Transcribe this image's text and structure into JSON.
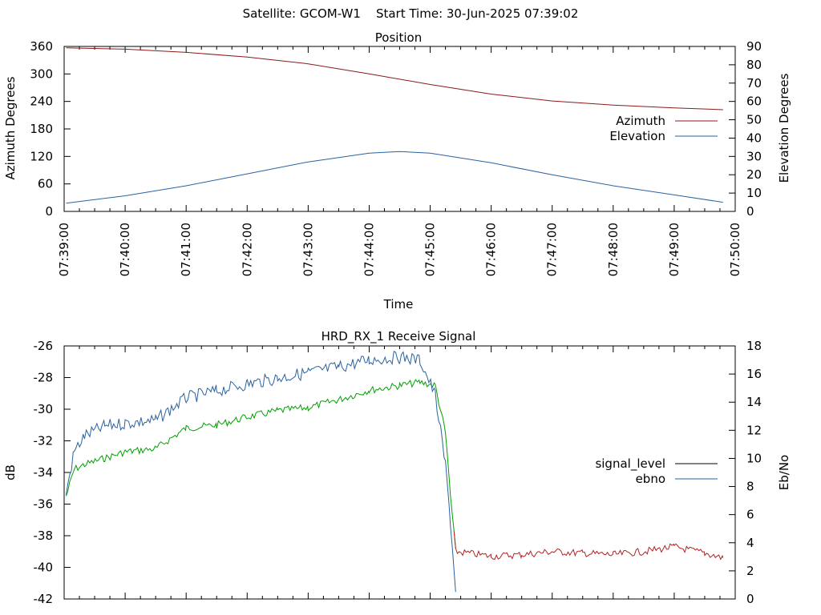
{
  "header": {
    "title": "Satellite: GCOM-W1    Start Time: 30-Jun-2025 07:39:02"
  },
  "colors": {
    "azimuth": "#8b1a1a",
    "elevation": "#2a62a0",
    "signal_level": "#00a000",
    "signal_low": "#b22222",
    "ebno": "#2a62a0",
    "axis": "#000000"
  },
  "chart_data": [
    {
      "type": "line",
      "title": "Position",
      "xlabel": "Time",
      "ylabel": "Azimuth Degrees",
      "y2label": "Elevation Degrees",
      "x_ticks": [
        "07:39:00",
        "07:40:00",
        "07:41:00",
        "07:42:00",
        "07:43:00",
        "07:44:00",
        "07:45:00",
        "07:46:00",
        "07:47:00",
        "07:48:00",
        "07:49:00",
        "07:50:00"
      ],
      "yticks": [
        0,
        60,
        120,
        180,
        240,
        300,
        360
      ],
      "y2ticks": [
        0,
        10,
        20,
        30,
        40,
        50,
        60,
        70,
        80,
        90
      ],
      "ylim": [
        0,
        360
      ],
      "y2lim": [
        0,
        90
      ],
      "legend_position": "right",
      "series": [
        {
          "name": "Azimuth",
          "axis": "y1",
          "x": [
            "07:39:02",
            "07:40:00",
            "07:41:00",
            "07:42:00",
            "07:43:00",
            "07:44:00",
            "07:45:00",
            "07:46:00",
            "07:47:00",
            "07:48:00",
            "07:49:00",
            "07:49:48"
          ],
          "values": [
            357,
            354,
            347,
            337,
            322,
            300,
            277,
            256,
            241,
            232,
            226,
            222
          ]
        },
        {
          "name": "Elevation",
          "axis": "y2",
          "x": [
            "07:39:02",
            "07:40:00",
            "07:41:00",
            "07:42:00",
            "07:43:00",
            "07:44:00",
            "07:44:30",
            "07:45:00",
            "07:46:00",
            "07:47:00",
            "07:48:00",
            "07:49:00",
            "07:49:48"
          ],
          "values": [
            4.5,
            8.5,
            14,
            20.5,
            27,
            31.8,
            32.7,
            31.8,
            26.5,
            20,
            14,
            9,
            5
          ]
        }
      ]
    },
    {
      "type": "line",
      "title": "HRD_RX_1 Receive Signal",
      "ylabel": "dB",
      "y2label": "Eb/No",
      "yticks": [
        -26,
        -28,
        -30,
        -32,
        -34,
        -36,
        -38,
        -40,
        -42
      ],
      "y2ticks": [
        18,
        16,
        14,
        12,
        10,
        8,
        6,
        4,
        2,
        0
      ],
      "ylim": [
        -42,
        -26
      ],
      "y2lim": [
        0,
        18
      ],
      "legend_position": "right",
      "series": [
        {
          "name": "signal_level",
          "axis": "y1",
          "x": [
            "07:39:02",
            "07:39:10",
            "07:39:20",
            "07:39:40",
            "07:40:00",
            "07:40:30",
            "07:41:00",
            "07:41:30",
            "07:42:00",
            "07:42:30",
            "07:43:00",
            "07:43:30",
            "07:44:00",
            "07:44:30",
            "07:44:50",
            "07:45:05",
            "07:45:15",
            "07:45:20",
            "07:45:25",
            "07:46:00",
            "07:46:30",
            "07:47:00",
            "07:47:30",
            "07:48:00",
            "07:48:30",
            "07:49:00",
            "07:49:30",
            "07:49:48"
          ],
          "values": [
            -35.5,
            -33.8,
            -33.5,
            -33.1,
            -32.7,
            -32.5,
            -31.2,
            -31.0,
            -30.5,
            -30.1,
            -29.9,
            -29.4,
            -28.8,
            -28.5,
            -28.3,
            -28.5,
            -31.5,
            -35.5,
            -39.0,
            -39.3,
            -39.2,
            -39.0,
            -39.1,
            -39.2,
            -39.0,
            -38.7,
            -39.1,
            -39.4
          ]
        },
        {
          "name": "ebno",
          "axis": "y2",
          "x": [
            "07:39:02",
            "07:39:10",
            "07:39:20",
            "07:39:40",
            "07:40:00",
            "07:40:30",
            "07:41:00",
            "07:41:30",
            "07:42:00",
            "07:42:30",
            "07:43:00",
            "07:43:30",
            "07:44:00",
            "07:44:30",
            "07:44:50",
            "07:45:05",
            "07:45:15",
            "07:45:20",
            "07:45:25"
          ],
          "values": [
            7.5,
            10.5,
            11.6,
            12.3,
            12.5,
            12.7,
            14.3,
            14.8,
            15.3,
            15.7,
            16.1,
            16.5,
            17.0,
            17.2,
            17.0,
            14.5,
            9.5,
            5.5,
            0.5
          ]
        }
      ]
    }
  ]
}
